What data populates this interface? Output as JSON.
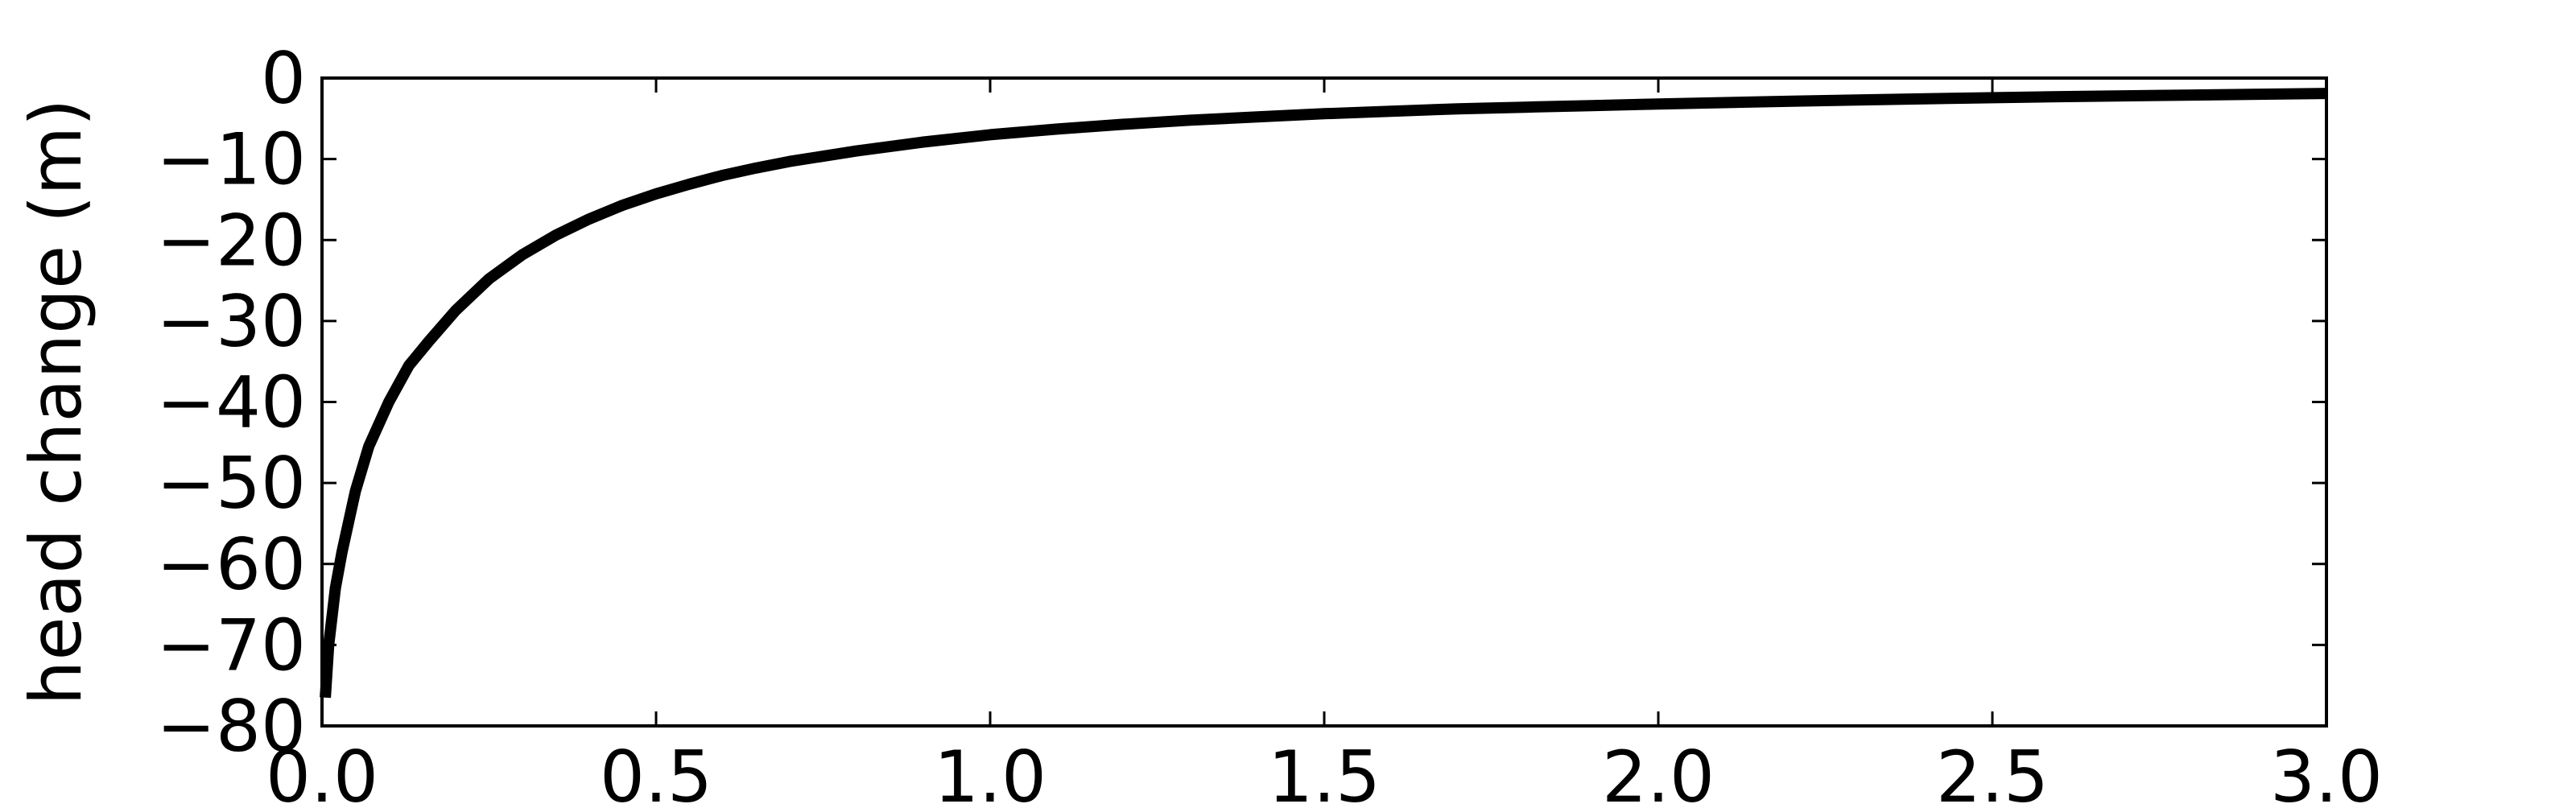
{
  "chart_data": {
    "type": "line",
    "title": "",
    "xlabel": "",
    "ylabel": "head change (m)",
    "xlim": [
      0.0,
      3.0
    ],
    "ylim": [
      -80,
      0
    ],
    "xticks": [
      0.0,
      0.5,
      1.0,
      1.5,
      2.0,
      2.5,
      3.0
    ],
    "xtick_labels": [
      "0.0",
      "0.5",
      "1.0",
      "1.5",
      "2.0",
      "2.5",
      "3.0"
    ],
    "yticks": [
      0,
      -10,
      -20,
      -30,
      -40,
      -50,
      -60,
      -70,
      -80
    ],
    "ytick_labels": [
      "0",
      "−10",
      "−20",
      "−30",
      "−40",
      "−50",
      "−60",
      "−70",
      "−80"
    ],
    "grid": false,
    "legend": "none",
    "series": [
      {
        "color": "#000000",
        "x": [
          0.005,
          0.01,
          0.02,
          0.03,
          0.05,
          0.07,
          0.1,
          0.13,
          0.16,
          0.2,
          0.25,
          0.3,
          0.35,
          0.4,
          0.45,
          0.5,
          0.55,
          0.6,
          0.65,
          0.7,
          0.8,
          0.9,
          1.0,
          1.1,
          1.2,
          1.3,
          1.4,
          1.5,
          1.6,
          1.7,
          1.8,
          1.9,
          2.0,
          2.2,
          2.4,
          2.6,
          2.8,
          3.0
        ],
        "y": [
          -76.5,
          -70.0,
          -63.0,
          -58.5,
          -51.0,
          -45.5,
          -40.0,
          -35.5,
          -32.5,
          -28.7,
          -24.8,
          -21.8,
          -19.4,
          -17.4,
          -15.7,
          -14.3,
          -13.1,
          -12.0,
          -11.1,
          -10.3,
          -9.0,
          -7.9,
          -7.0,
          -6.3,
          -5.7,
          -5.2,
          -4.8,
          -4.4,
          -4.1,
          -3.8,
          -3.6,
          -3.4,
          -3.2,
          -2.85,
          -2.55,
          -2.3,
          -2.1,
          -1.9
        ]
      }
    ]
  }
}
